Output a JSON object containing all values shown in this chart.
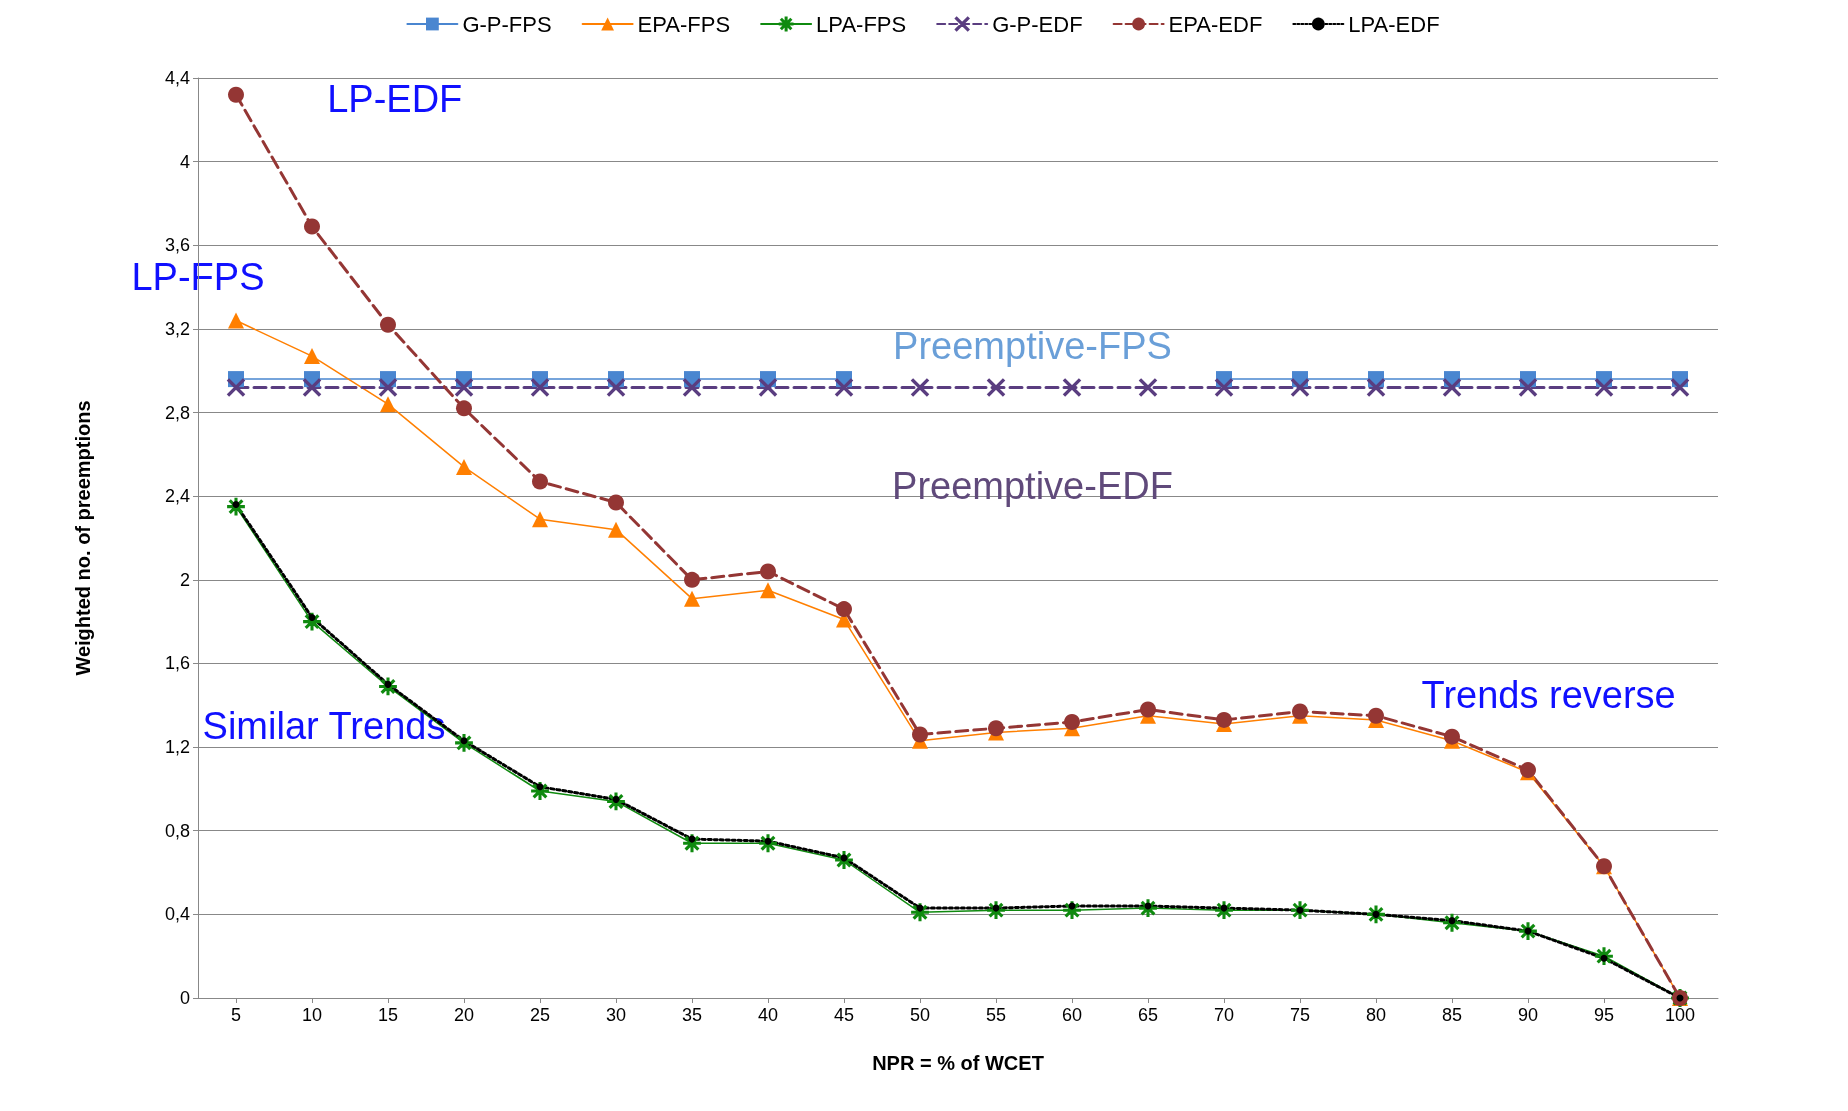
{
  "chart_data": {
    "type": "line",
    "xlabel": "NPR = % of WCET",
    "ylabel": "Weighted no. of preemptions",
    "x": [
      5,
      10,
      15,
      20,
      25,
      30,
      35,
      40,
      45,
      50,
      55,
      60,
      65,
      70,
      75,
      80,
      85,
      90,
      95,
      100
    ],
    "xlim": [
      2.5,
      102.5
    ],
    "xticks": [
      5,
      10,
      15,
      20,
      25,
      30,
      35,
      40,
      45,
      50,
      55,
      60,
      65,
      70,
      75,
      80,
      85,
      90,
      95,
      100
    ],
    "ylim": [
      0,
      4.4
    ],
    "yticks": [
      0,
      {
        "value": 0.4,
        "label": "0,4"
      },
      {
        "value": 0.8,
        "label": "0,8"
      },
      {
        "value": 1.2,
        "label": "1,2"
      },
      {
        "value": 1.6,
        "label": "1,6"
      },
      2,
      {
        "value": 2.4,
        "label": "2,4"
      },
      {
        "value": 2.8,
        "label": "2,8"
      },
      {
        "value": 3.2,
        "label": "3,2"
      },
      {
        "value": 3.6,
        "label": "3,6"
      },
      4,
      {
        "value": 4.4,
        "label": "4,4"
      }
    ],
    "grid": "y",
    "legend": "top",
    "series": [
      {
        "name": "G-P-FPS",
        "color": "#4a86d0",
        "marker": "square",
        "line_style": "solid",
        "values": [
          2.96,
          2.96,
          2.96,
          2.96,
          2.96,
          2.96,
          2.96,
          2.96,
          2.96,
          null,
          null,
          null,
          null,
          2.96,
          2.96,
          2.96,
          2.96,
          2.96,
          2.96,
          2.96
        ]
      },
      {
        "name": "EPA-FPS",
        "color": "#ff7f00",
        "marker": "triangle",
        "line_style": "solid",
        "values": [
          3.24,
          3.07,
          2.84,
          2.54,
          2.29,
          2.24,
          1.91,
          1.95,
          1.81,
          1.23,
          1.27,
          1.29,
          1.35,
          1.31,
          1.35,
          1.33,
          1.23,
          1.08,
          0.63,
          0
        ]
      },
      {
        "name": "LPA-FPS",
        "color": "#0f8a0f",
        "marker": "star",
        "line_style": "solid",
        "values": [
          2.35,
          1.8,
          1.49,
          1.22,
          0.99,
          0.94,
          0.74,
          0.74,
          0.66,
          0.41,
          0.42,
          0.42,
          0.43,
          0.42,
          0.42,
          0.4,
          0.36,
          0.32,
          0.2,
          0
        ]
      },
      {
        "name": "G-P-EDF",
        "color": "#5a3d80",
        "marker": "cross",
        "line_style": "dashed",
        "values": [
          2.92,
          2.92,
          2.92,
          2.92,
          2.92,
          2.92,
          2.92,
          2.92,
          2.92,
          2.92,
          2.92,
          2.92,
          2.92,
          2.92,
          2.92,
          2.92,
          2.92,
          2.92,
          2.92,
          2.92
        ]
      },
      {
        "name": "EPA-EDF",
        "color": "#943634",
        "marker": "circle",
        "line_style": "dashed",
        "values": [
          4.32,
          3.69,
          3.22,
          2.82,
          2.47,
          2.37,
          2.0,
          2.04,
          1.86,
          1.26,
          1.29,
          1.32,
          1.38,
          1.33,
          1.37,
          1.35,
          1.25,
          1.09,
          0.63,
          0
        ]
      },
      {
        "name": "LPA-EDF",
        "color": "#000000",
        "marker": "circle",
        "line_style": "dotted",
        "values": [
          2.36,
          1.82,
          1.5,
          1.23,
          1.01,
          0.95,
          0.76,
          0.75,
          0.67,
          0.43,
          0.43,
          0.44,
          0.44,
          0.43,
          0.42,
          0.4,
          0.37,
          0.32,
          0.19,
          0
        ]
      }
    ],
    "annotations": [
      "LP-EDF",
      "LP-FPS",
      "Similar Trends",
      "Trends reverse",
      "Preemptive-FPS",
      "Preemptive-EDF"
    ]
  }
}
